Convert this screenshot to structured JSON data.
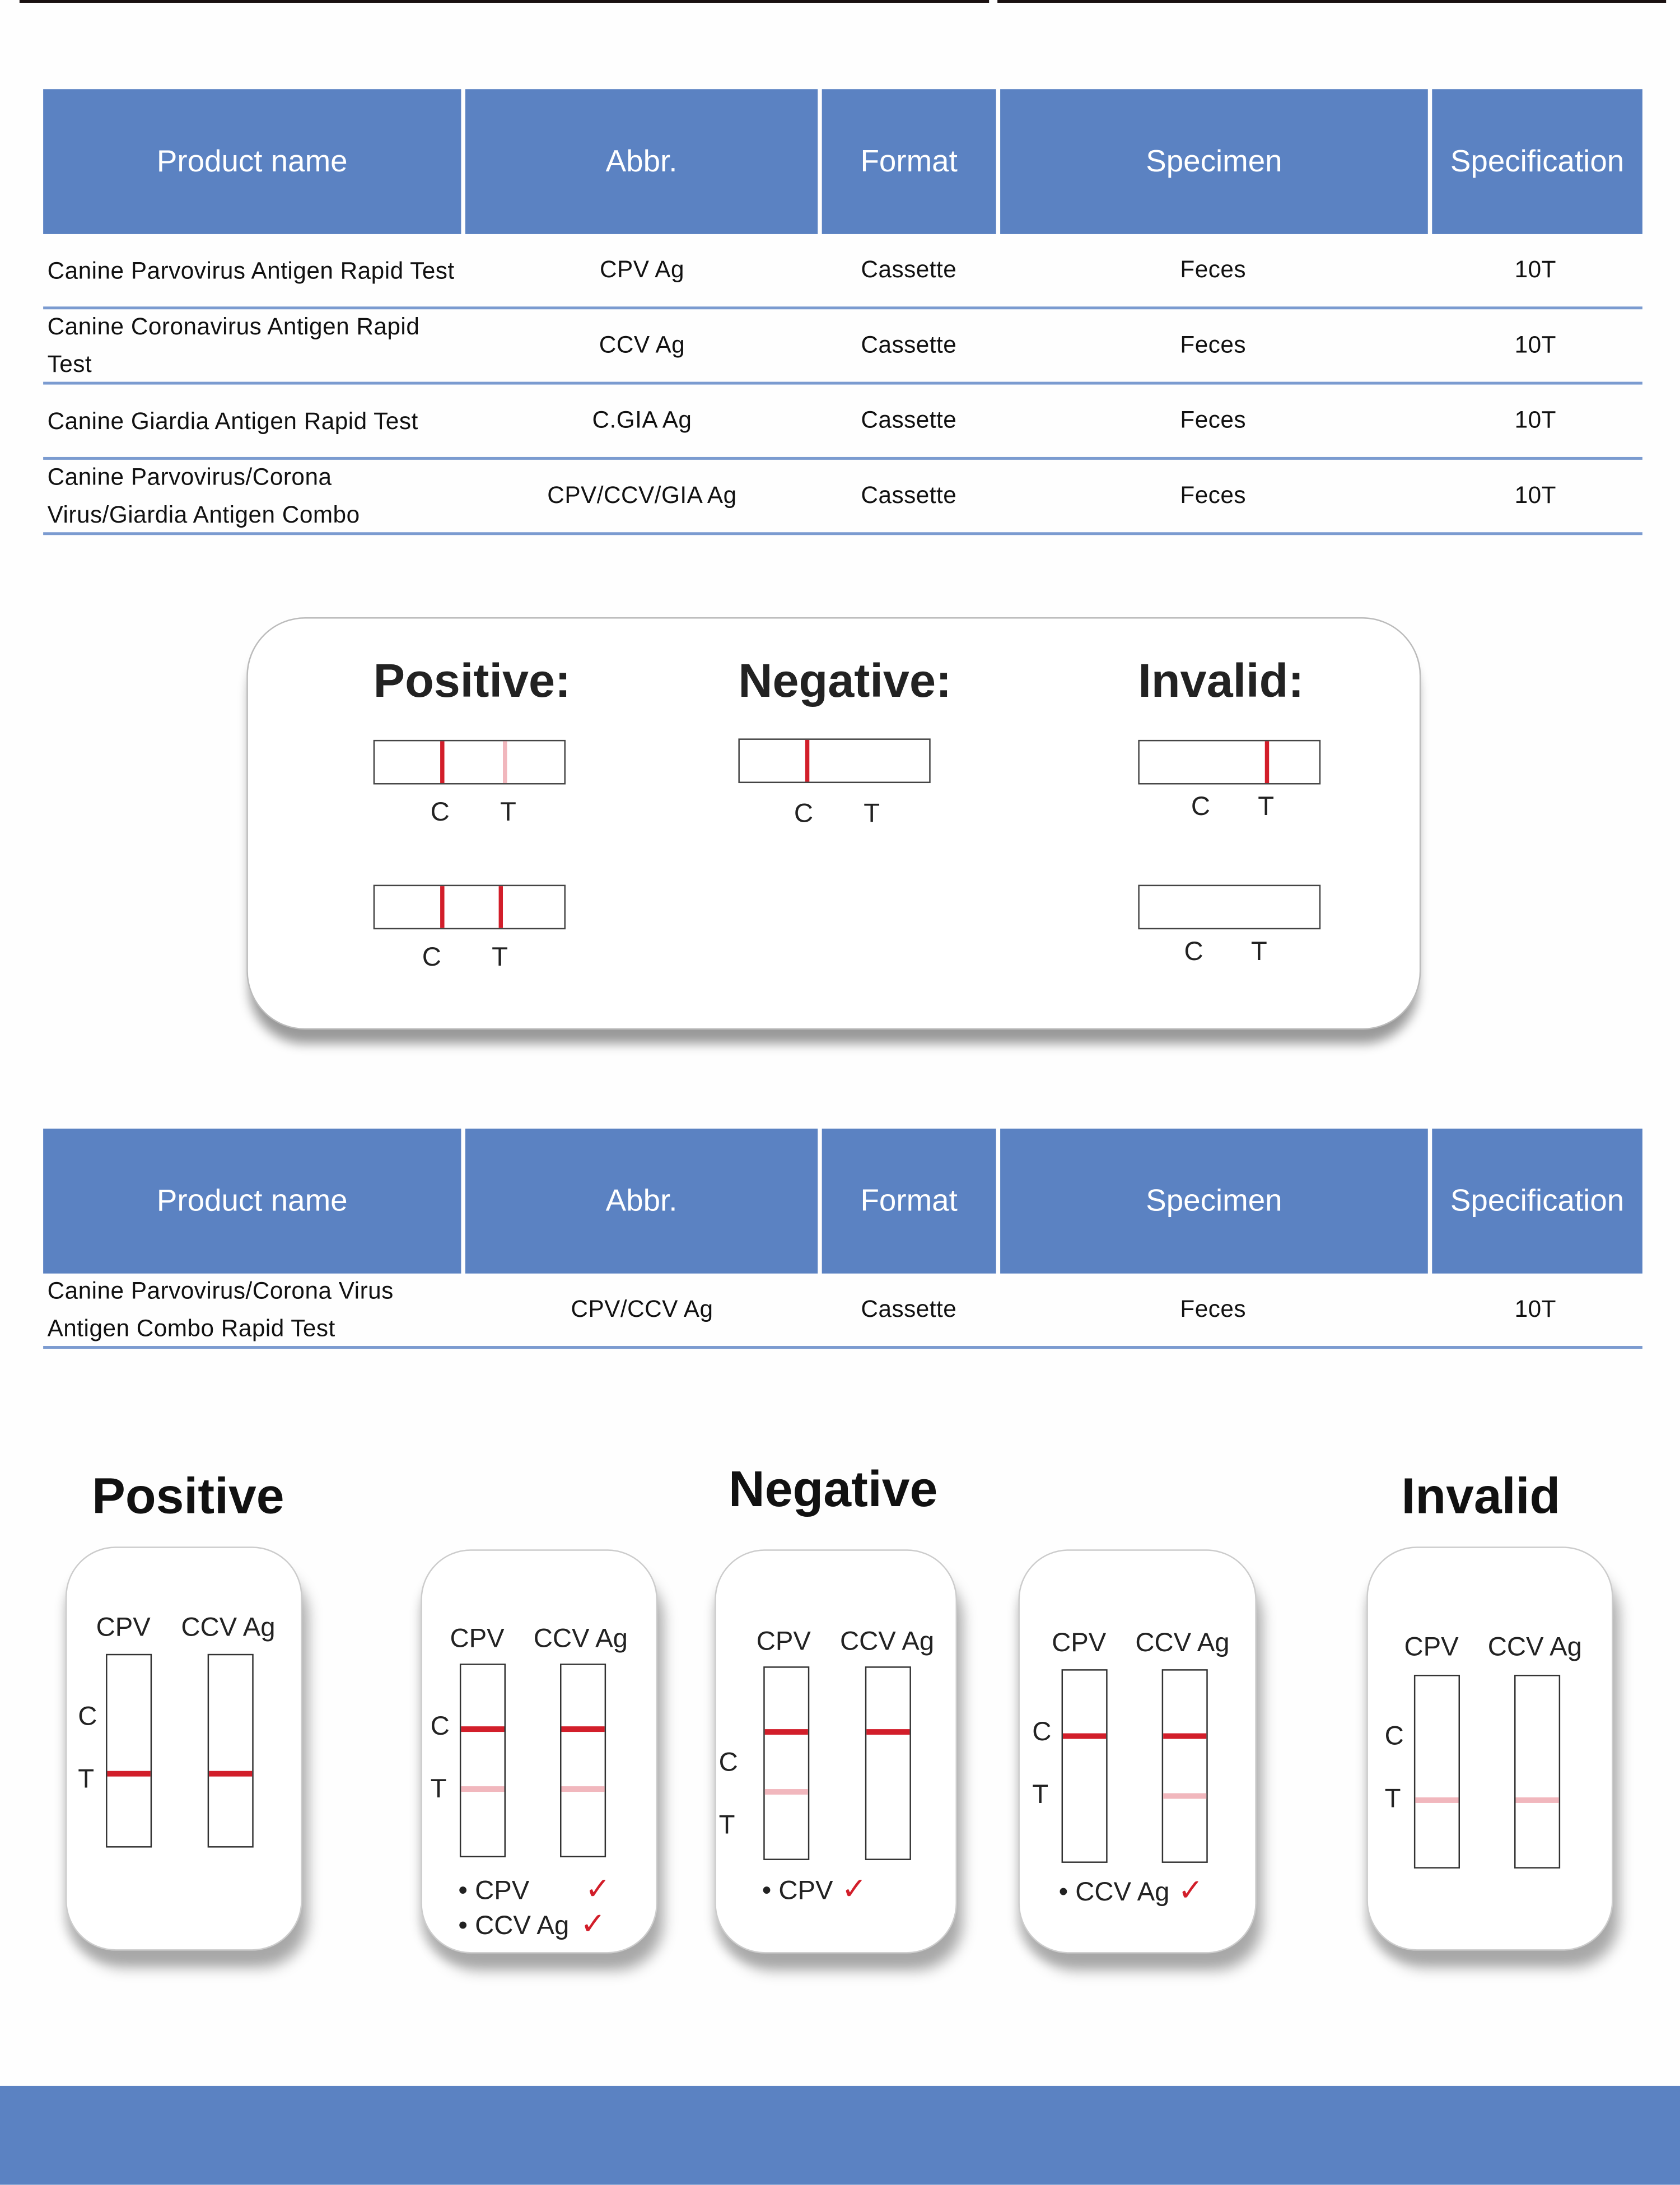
{
  "table1": {
    "headers": [
      "Product name",
      "Abbr.",
      "Format",
      "Specimen",
      "Specification"
    ],
    "rows": [
      {
        "name": "Canine Parvovirus Antigen Rapid Test",
        "abbr": "CPV Ag",
        "format": "Cassette",
        "specimen": "Feces",
        "spec": "10T"
      },
      {
        "name": "Canine Coronavirus Antigen Rapid Test",
        "abbr": "CCV Ag",
        "format": "Cassette",
        "specimen": "Feces",
        "spec": "10T"
      },
      {
        "name": "Canine Giardia Antigen Rapid Test",
        "abbr": "C.GIA Ag",
        "format": "Cassette",
        "specimen": "Feces",
        "spec": "10T"
      },
      {
        "name": "Canine Parvovirus/Corona Virus/Giardia Antigen Combo",
        "abbr": "CPV/CCV/GIA Ag",
        "format": "Cassette",
        "specimen": "Feces",
        "spec": "10T"
      }
    ]
  },
  "results1": {
    "positive": "Positive:",
    "negative": "Negative:",
    "invalid": "Invalid:",
    "c": "C",
    "t": "T"
  },
  "table2": {
    "headers": [
      "Product name",
      "Abbr.",
      "Format",
      "Specimen",
      "Specification"
    ],
    "rows": [
      {
        "name": "Canine Parvovirus/Corona Virus Antigen Combo Rapid Test",
        "abbr": "CPV/CCV Ag",
        "format": "Cassette",
        "specimen": "Feces",
        "spec": "10T"
      }
    ]
  },
  "results2": {
    "positive": "Positive",
    "negative": "Negative",
    "invalid": "Invalid",
    "cpv": "CPV",
    "ccv": "CCV Ag",
    "c": "C",
    "t": "T",
    "bullet_cpv": "• CPV",
    "bullet_ccv": "• CCV Ag",
    "check": "✓"
  },
  "colors": {
    "header": "#5b82c2",
    "line_strong": "#d21e2a",
    "line_faint": "#f1b7bd"
  }
}
